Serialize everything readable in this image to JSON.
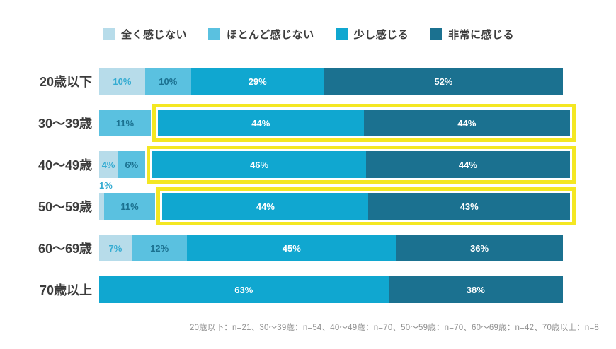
{
  "chart_data": {
    "type": "bar",
    "orientation": "horizontal",
    "stacked": true,
    "unit": "%",
    "grid": false,
    "legend_position": "top",
    "series_names": [
      "全く感じない",
      "ほとんど感じない",
      "少し感じる",
      "非常に感じる"
    ],
    "series_colors": [
      "#b7dcea",
      "#5ac1e0",
      "#10a7d0",
      "#1b7190"
    ],
    "series_label_colors": [
      "#35acd2",
      "#1b7190",
      "#ffffff",
      "#ffffff"
    ],
    "categories": [
      "20歳以下",
      "30〜39歳",
      "40〜49歳",
      "50〜59歳",
      "60〜69歳",
      "70歳以上"
    ],
    "rows": [
      {
        "label": "20歳以下",
        "values": [
          10,
          10,
          29,
          52
        ],
        "highlight": false
      },
      {
        "label": "30〜39歳",
        "values": [
          0,
          11,
          44,
          44
        ],
        "highlight": true
      },
      {
        "label": "40〜49歳",
        "values": [
          4,
          6,
          46,
          44
        ],
        "highlight": true
      },
      {
        "label": "50〜59歳",
        "values": [
          1,
          11,
          44,
          43
        ],
        "highlight": true
      },
      {
        "label": "60〜69歳",
        "values": [
          7,
          12,
          45,
          36
        ],
        "highlight": false
      },
      {
        "label": "70歳以上",
        "values": [
          0,
          0,
          63,
          38
        ],
        "highlight": false
      }
    ],
    "highlight_color": "#f4e722",
    "value_suffix": "%",
    "footnote": "20歳以下：n=21、30〜39歳：n=54、40〜49歳：n=70、50〜59歳：n=70、60〜69歳：n=42、70歳以上：n=8"
  }
}
